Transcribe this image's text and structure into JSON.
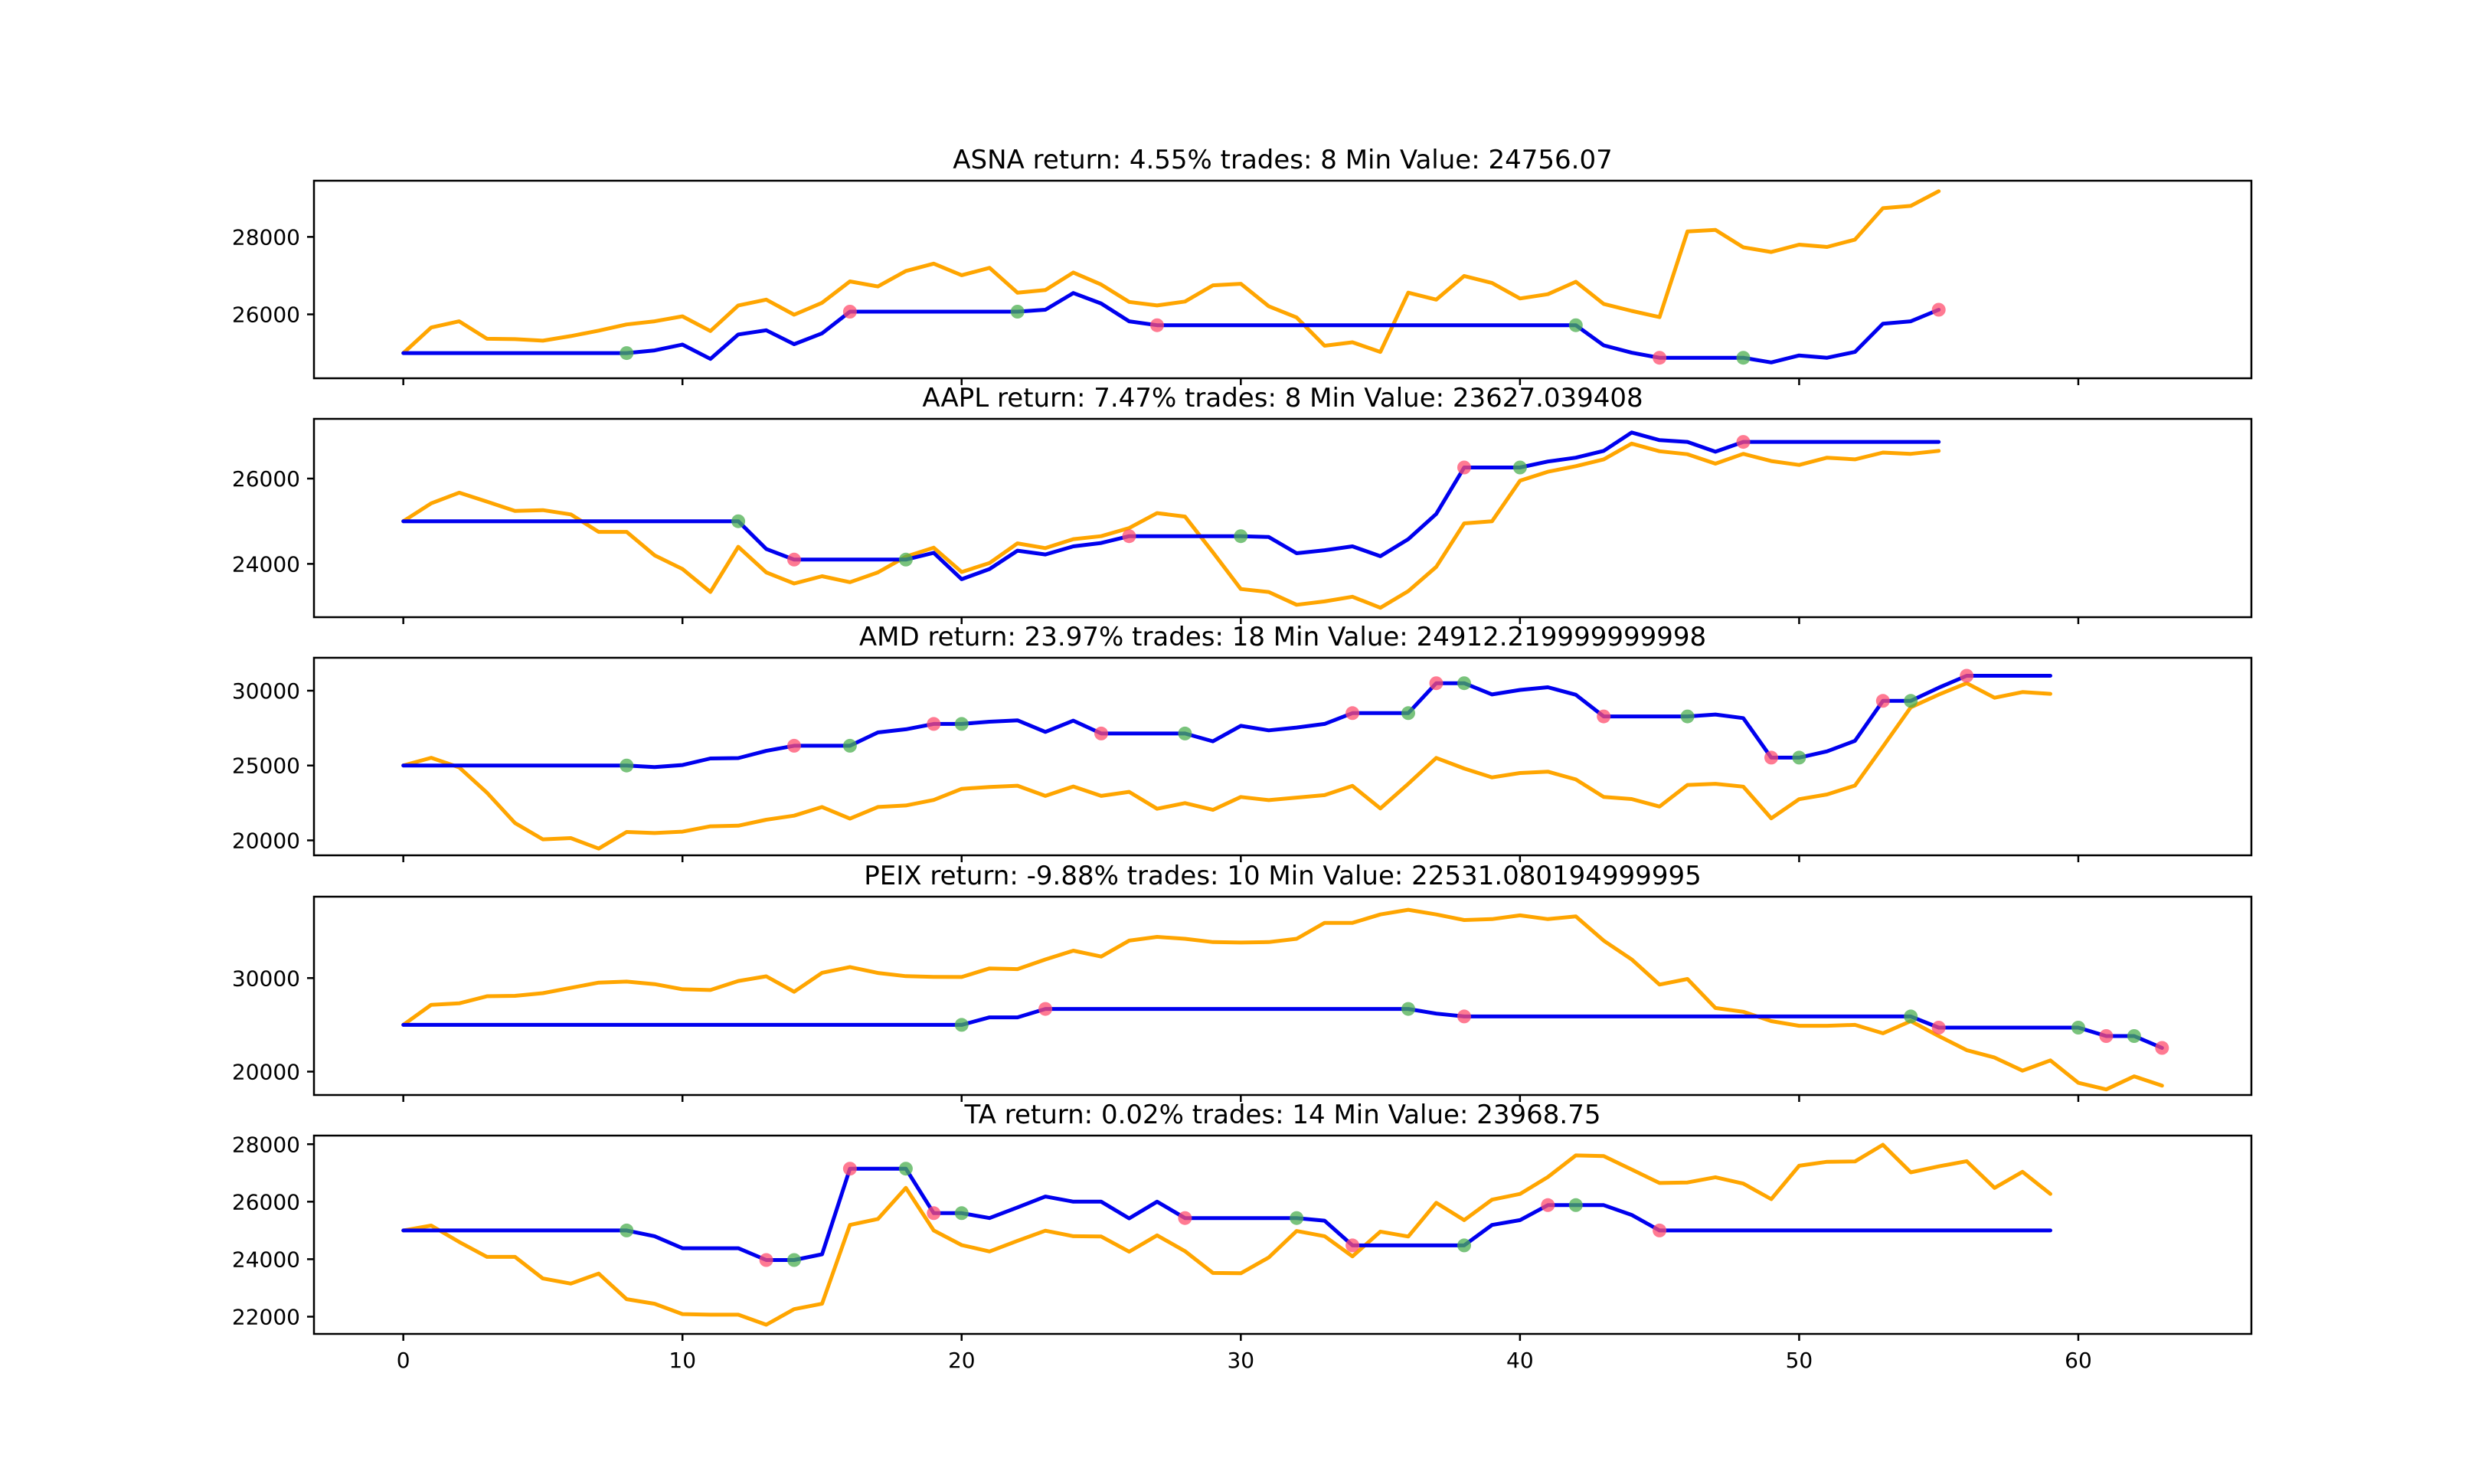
{
  "colors": {
    "strategy": "#0000ee",
    "price": "#ffa500",
    "buy": "#4caf50",
    "sell": "#ff4d6d"
  },
  "chart_data": [
    {
      "type": "line",
      "title": "ASNA return: 4.55% trades: 8 Min Value: 24756.07",
      "ylim": [
        24350,
        29450
      ],
      "yticks": [
        26000,
        28000
      ],
      "series": [
        {
          "role": "strategy",
          "values": [
            25000,
            25000,
            25000,
            25000,
            25000,
            25000,
            25000,
            25000,
            25000,
            25070,
            25220,
            24850,
            25480,
            25590,
            25230,
            25510,
            26070,
            26070,
            26070,
            26070,
            26070,
            26070,
            26070,
            26120,
            26550,
            26280,
            25820,
            25720,
            25720,
            25720,
            25720,
            25720,
            25720,
            25720,
            25720,
            25720,
            25720,
            25720,
            25720,
            25720,
            25720,
            25720,
            25720,
            25200,
            25010,
            24880,
            24880,
            24880,
            24880,
            24760,
            24940,
            24880,
            25030,
            25760,
            25820,
            26120
          ]
        },
        {
          "role": "price",
          "values": [
            25000,
            25660,
            25820,
            25370,
            25360,
            25320,
            25440,
            25580,
            25740,
            25820,
            25950,
            25570,
            26230,
            26380,
            25990,
            26300,
            26850,
            26720,
            27120,
            27310,
            27010,
            27200,
            26560,
            26630,
            27080,
            26770,
            26320,
            26230,
            26330,
            26750,
            26790,
            26210,
            25920,
            25190,
            25280,
            25030,
            26560,
            26380,
            26990,
            26810,
            26410,
            26520,
            26840,
            26270,
            26090,
            25930,
            28140,
            28180,
            27730,
            27610,
            27800,
            27740,
            27930,
            28740,
            28800,
            29180
          ]
        }
      ],
      "markers": [
        {
          "x": 8,
          "y": 25000,
          "kind": "buy"
        },
        {
          "x": 16,
          "y": 26070,
          "kind": "sell"
        },
        {
          "x": 22,
          "y": 26070,
          "kind": "buy"
        },
        {
          "x": 27,
          "y": 25720,
          "kind": "sell"
        },
        {
          "x": 42,
          "y": 25720,
          "kind": "buy"
        },
        {
          "x": 45,
          "y": 24880,
          "kind": "sell"
        },
        {
          "x": 48,
          "y": 24880,
          "kind": "buy"
        },
        {
          "x": 55,
          "y": 26120,
          "kind": "sell"
        }
      ]
    },
    {
      "type": "line",
      "title": "AAPL return: 7.47% trades: 8 Min Value: 23627.039408",
      "ylim": [
        22750,
        27400
      ],
      "yticks": [
        24000,
        26000
      ],
      "series": [
        {
          "role": "strategy",
          "values": [
            25000,
            25000,
            25000,
            25000,
            25000,
            25000,
            25000,
            25000,
            25000,
            25000,
            25000,
            25000,
            25000,
            24350,
            24100,
            24100,
            24100,
            24100,
            24100,
            24260,
            23640,
            23880,
            24310,
            24220,
            24410,
            24490,
            24650,
            24650,
            24650,
            24650,
            24650,
            24630,
            24250,
            24320,
            24410,
            24180,
            24580,
            25170,
            26260,
            26260,
            26260,
            26400,
            26490,
            26650,
            27080,
            26900,
            26860,
            26630,
            26860,
            26860,
            26860,
            26860,
            26860,
            26860,
            26860,
            26860
          ]
        },
        {
          "role": "price",
          "values": [
            25000,
            25420,
            25670,
            25460,
            25240,
            25260,
            25160,
            24750,
            24750,
            24200,
            23880,
            23340,
            24400,
            23800,
            23540,
            23710,
            23570,
            23800,
            24170,
            24380,
            23810,
            24020,
            24480,
            24370,
            24580,
            24650,
            24840,
            25190,
            25110,
            24270,
            23410,
            23340,
            23040,
            23120,
            23230,
            22970,
            23360,
            23930,
            24950,
            25000,
            25950,
            26160,
            26290,
            26450,
            26820,
            26640,
            26570,
            26350,
            26580,
            26410,
            26320,
            26490,
            26450,
            26610,
            26580,
            26650
          ]
        }
      ],
      "markers": [
        {
          "x": 12,
          "y": 25000,
          "kind": "buy"
        },
        {
          "x": 14,
          "y": 24100,
          "kind": "sell"
        },
        {
          "x": 18,
          "y": 24100,
          "kind": "buy"
        },
        {
          "x": 26,
          "y": 24650,
          "kind": "sell"
        },
        {
          "x": 30,
          "y": 24650,
          "kind": "buy"
        },
        {
          "x": 38,
          "y": 26260,
          "kind": "sell"
        },
        {
          "x": 40,
          "y": 26260,
          "kind": "buy"
        },
        {
          "x": 48,
          "y": 26860,
          "kind": "sell"
        }
      ]
    },
    {
      "type": "line",
      "title": "AMD return: 23.97% trades: 18 Min Value: 24912.219999999998",
      "ylim": [
        19000,
        32200
      ],
      "yticks": [
        20000,
        25000,
        30000
      ],
      "series": [
        {
          "role": "strategy",
          "values": [
            25000,
            25000,
            25000,
            25000,
            25000,
            25000,
            25000,
            25000,
            25000,
            24900,
            25030,
            25470,
            25500,
            25980,
            26320,
            26320,
            26320,
            27210,
            27420,
            27780,
            27780,
            27930,
            28020,
            27250,
            28000,
            27140,
            27140,
            27140,
            27140,
            26620,
            27650,
            27350,
            27540,
            27780,
            28500,
            28500,
            28500,
            30500,
            30500,
            29750,
            30050,
            30230,
            29730,
            28280,
            28280,
            28280,
            28280,
            28410,
            28170,
            25530,
            25530,
            25950,
            26650,
            29320,
            29320,
            30200,
            31000,
            31000,
            31000,
            31000
          ]
        },
        {
          "role": "price",
          "values": [
            25000,
            25520,
            24880,
            23180,
            21160,
            20070,
            20150,
            19450,
            20560,
            20490,
            20580,
            20940,
            20980,
            21380,
            21650,
            22230,
            21450,
            22230,
            22330,
            22700,
            23440,
            23570,
            23650,
            22970,
            23600,
            22970,
            23240,
            22110,
            22490,
            22040,
            22900,
            22690,
            22860,
            23020,
            23640,
            22130,
            23780,
            25510,
            24800,
            24210,
            24500,
            24590,
            24070,
            22900,
            22760,
            22260,
            23700,
            23780,
            23590,
            21470,
            22750,
            23070,
            23660,
            26260,
            28890,
            29740,
            30500,
            29530,
            29910,
            29790
          ]
        }
      ],
      "markers": [
        {
          "x": 8,
          "y": 25000,
          "kind": "buy"
        },
        {
          "x": 14,
          "y": 26320,
          "kind": "sell"
        },
        {
          "x": 16,
          "y": 26320,
          "kind": "buy"
        },
        {
          "x": 19,
          "y": 27780,
          "kind": "sell"
        },
        {
          "x": 20,
          "y": 27780,
          "kind": "buy"
        },
        {
          "x": 25,
          "y": 27140,
          "kind": "sell"
        },
        {
          "x": 28,
          "y": 27140,
          "kind": "buy"
        },
        {
          "x": 34,
          "y": 28500,
          "kind": "sell"
        },
        {
          "x": 36,
          "y": 28500,
          "kind": "buy"
        },
        {
          "x": 37,
          "y": 30500,
          "kind": "sell"
        },
        {
          "x": 38,
          "y": 30500,
          "kind": "buy"
        },
        {
          "x": 43,
          "y": 28280,
          "kind": "sell"
        },
        {
          "x": 46,
          "y": 28280,
          "kind": "buy"
        },
        {
          "x": 49,
          "y": 25530,
          "kind": "sell"
        },
        {
          "x": 50,
          "y": 25530,
          "kind": "buy"
        },
        {
          "x": 53,
          "y": 29320,
          "kind": "sell"
        },
        {
          "x": 54,
          "y": 29320,
          "kind": "buy"
        },
        {
          "x": 56,
          "y": 31000,
          "kind": "sell"
        }
      ]
    },
    {
      "type": "line",
      "title": "PEIX return: -9.88% trades: 10 Min Value: 22531.080194999995",
      "ylim": [
        17500,
        38700
      ],
      "yticks": [
        20000,
        30000
      ],
      "series": [
        {
          "role": "strategy",
          "values": [
            25000,
            25000,
            25000,
            25000,
            25000,
            25000,
            25000,
            25000,
            25000,
            25000,
            25000,
            25000,
            25000,
            25000,
            25000,
            25000,
            25000,
            25000,
            25000,
            25000,
            25000,
            25800,
            25800,
            26700,
            26700,
            26700,
            26700,
            26700,
            26700,
            26700,
            26700,
            26700,
            26700,
            26700,
            26700,
            26700,
            26700,
            26200,
            25900,
            25900,
            25900,
            25900,
            25900,
            25900,
            25900,
            25900,
            25900,
            25900,
            25900,
            25900,
            25900,
            25900,
            25900,
            25900,
            25900,
            24700,
            24700,
            24700,
            24700,
            24700,
            24700,
            23800,
            23800,
            22530
          ]
        },
        {
          "role": "price",
          "values": [
            25000,
            27140,
            27300,
            28060,
            28100,
            28390,
            28950,
            29520,
            29620,
            29350,
            28800,
            28720,
            29690,
            30190,
            28530,
            30560,
            31180,
            30550,
            30200,
            30130,
            30110,
            31030,
            30960,
            31990,
            32930,
            32300,
            34000,
            34400,
            34200,
            33850,
            33800,
            33850,
            34200,
            35900,
            35900,
            36800,
            37300,
            36800,
            36200,
            36300,
            36700,
            36300,
            36600,
            34000,
            32000,
            29300,
            29900,
            26800,
            26400,
            25400,
            24900,
            24900,
            25000,
            24100,
            25400,
            23800,
            22300,
            21500,
            20100,
            21200,
            18800,
            18100,
            19500,
            18500
          ]
        }
      ],
      "markers": [
        {
          "x": 20,
          "y": 25000,
          "kind": "buy"
        },
        {
          "x": 23,
          "y": 26700,
          "kind": "sell"
        },
        {
          "x": 36,
          "y": 26700,
          "kind": "buy"
        },
        {
          "x": 38,
          "y": 25900,
          "kind": "sell"
        },
        {
          "x": 54,
          "y": 25900,
          "kind": "buy"
        },
        {
          "x": 55,
          "y": 24700,
          "kind": "sell"
        },
        {
          "x": 60,
          "y": 24700,
          "kind": "buy"
        },
        {
          "x": 61,
          "y": 23800,
          "kind": "sell"
        },
        {
          "x": 62,
          "y": 23800,
          "kind": "buy"
        },
        {
          "x": 63,
          "y": 22530,
          "kind": "sell"
        }
      ]
    },
    {
      "type": "line",
      "title": "TA return: 0.02% trades: 14 Min Value: 23968.75",
      "ylim": [
        21400,
        28300
      ],
      "yticks": [
        22000,
        24000,
        26000,
        28000
      ],
      "series": [
        {
          "role": "strategy",
          "values": [
            25000,
            25000,
            25000,
            25000,
            25000,
            25000,
            25000,
            25000,
            25000,
            24800,
            24380,
            24380,
            24380,
            23970,
            23970,
            24170,
            27150,
            27150,
            27150,
            25600,
            25600,
            25430,
            25800,
            26180,
            26000,
            26000,
            25420,
            26000,
            25430,
            25430,
            25430,
            25430,
            25430,
            25340,
            24480,
            24480,
            24480,
            24480,
            24480,
            25190,
            25360,
            25880,
            25880,
            25880,
            25540,
            25000,
            25000,
            25000,
            25000,
            25000,
            25000,
            25000,
            25000,
            25000,
            25000,
            25000,
            25000,
            25000,
            25000,
            25000
          ]
        },
        {
          "role": "price",
          "values": [
            25000,
            25170,
            24600,
            24080,
            24080,
            23330,
            23150,
            23500,
            22610,
            22450,
            22090,
            22070,
            22070,
            21720,
            22260,
            22450,
            25190,
            25400,
            26480,
            25000,
            24490,
            24270,
            24640,
            24990,
            24800,
            24790,
            24260,
            24830,
            24280,
            23520,
            23510,
            24060,
            24980,
            24800,
            24100,
            24960,
            24790,
            25960,
            25360,
            26070,
            26270,
            26860,
            27610,
            27590,
            27120,
            26650,
            26670,
            26850,
            26630,
            26090,
            27250,
            27390,
            27400,
            27980,
            27020,
            27230,
            27410,
            26480,
            27040,
            26270
          ]
        }
      ],
      "markers": [
        {
          "x": 8,
          "y": 25000,
          "kind": "buy"
        },
        {
          "x": 13,
          "y": 23970,
          "kind": "sell"
        },
        {
          "x": 14,
          "y": 23970,
          "kind": "buy"
        },
        {
          "x": 16,
          "y": 27150,
          "kind": "sell"
        },
        {
          "x": 18,
          "y": 27150,
          "kind": "buy"
        },
        {
          "x": 19,
          "y": 25600,
          "kind": "sell"
        },
        {
          "x": 20,
          "y": 25600,
          "kind": "buy"
        },
        {
          "x": 28,
          "y": 25430,
          "kind": "sell"
        },
        {
          "x": 32,
          "y": 25430,
          "kind": "buy"
        },
        {
          "x": 34,
          "y": 24480,
          "kind": "sell"
        },
        {
          "x": 38,
          "y": 24480,
          "kind": "buy"
        },
        {
          "x": 41,
          "y": 25880,
          "kind": "sell"
        },
        {
          "x": 42,
          "y": 25880,
          "kind": "buy"
        },
        {
          "x": 45,
          "y": 25000,
          "kind": "sell"
        }
      ]
    }
  ],
  "xaxis": {
    "xlim": [
      -3.2,
      66.2
    ],
    "ticks": [
      0,
      10,
      20,
      30,
      40,
      50,
      60
    ],
    "grid": false
  }
}
